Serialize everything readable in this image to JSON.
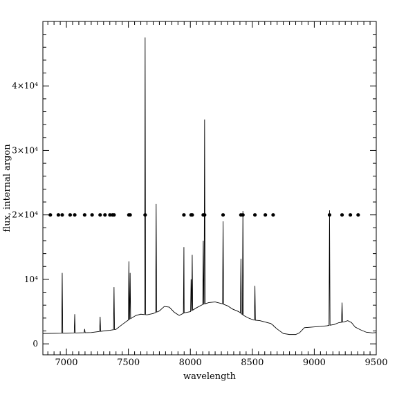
{
  "chart_data": {
    "type": "line",
    "title": "",
    "xlabel": "wavelength",
    "ylabel": "flux, internal argon",
    "xlim": [
      6810,
      9500
    ],
    "ylim": [
      -1700,
      50000
    ],
    "grid": false,
    "legend": "none",
    "x_ticks": [
      {
        "value": 7000,
        "label": "7000"
      },
      {
        "value": 7500,
        "label": "7500"
      },
      {
        "value": 8000,
        "label": "8000"
      },
      {
        "value": 8500,
        "label": "8500"
      },
      {
        "value": 9000,
        "label": "9000"
      },
      {
        "value": 9500,
        "label": "9500"
      }
    ],
    "y_ticks": [
      {
        "value": 0,
        "label": "0"
      },
      {
        "value": 10000,
        "label": "10⁴"
      },
      {
        "value": 20000,
        "label": "2×10⁴"
      },
      {
        "value": 30000,
        "label": "3×10⁴"
      },
      {
        "value": 40000,
        "label": "4×10⁴"
      }
    ],
    "continuum": [
      [
        6810,
        1600
      ],
      [
        7000,
        1650
      ],
      [
        7200,
        1750
      ],
      [
        7300,
        2000
      ],
      [
        7350,
        2100
      ],
      [
        7400,
        2250
      ],
      [
        7450,
        3000
      ],
      [
        7500,
        3700
      ],
      [
        7560,
        4400
      ],
      [
        7600,
        4600
      ],
      [
        7650,
        4500
      ],
      [
        7700,
        4700
      ],
      [
        7750,
        5100
      ],
      [
        7790,
        5800
      ],
      [
        7830,
        5700
      ],
      [
        7870,
        4900
      ],
      [
        7910,
        4400
      ],
      [
        7950,
        4800
      ],
      [
        8000,
        5000
      ],
      [
        8050,
        5600
      ],
      [
        8100,
        6100
      ],
      [
        8150,
        6400
      ],
      [
        8200,
        6500
      ],
      [
        8260,
        6200
      ],
      [
        8300,
        5900
      ],
      [
        8340,
        5400
      ],
      [
        8390,
        5000
      ],
      [
        8430,
        4400
      ],
      [
        8470,
        4000
      ],
      [
        8510,
        3700
      ],
      [
        8560,
        3600
      ],
      [
        8600,
        3400
      ],
      [
        8650,
        3150
      ],
      [
        8700,
        2300
      ],
      [
        8750,
        1600
      ],
      [
        8800,
        1450
      ],
      [
        8850,
        1450
      ],
      [
        8880,
        1700
      ],
      [
        8920,
        2500
      ],
      [
        8980,
        2600
      ],
      [
        9050,
        2700
      ],
      [
        9100,
        2800
      ],
      [
        9160,
        3000
      ],
      [
        9200,
        3300
      ],
      [
        9240,
        3400
      ],
      [
        9270,
        3600
      ],
      [
        9300,
        3300
      ],
      [
        9330,
        2600
      ],
      [
        9370,
        2200
      ],
      [
        9420,
        1800
      ],
      [
        9470,
        1700
      ],
      [
        9500,
        1750
      ]
    ],
    "lines": [
      {
        "x": 6966,
        "y": 11000
      },
      {
        "x": 7067,
        "y": 4600
      },
      {
        "x": 7147,
        "y": 2300
      },
      {
        "x": 7272,
        "y": 4200
      },
      {
        "x": 7384,
        "y": 8800
      },
      {
        "x": 7504,
        "y": 12800
      },
      {
        "x": 7514,
        "y": 11000
      },
      {
        "x": 7635,
        "y": 47500
      },
      {
        "x": 7724,
        "y": 21700
      },
      {
        "x": 7948,
        "y": 15000
      },
      {
        "x": 8006,
        "y": 10000
      },
      {
        "x": 8015,
        "y": 13800
      },
      {
        "x": 8104,
        "y": 16000
      },
      {
        "x": 8115,
        "y": 34800
      },
      {
        "x": 8264,
        "y": 19000
      },
      {
        "x": 8408,
        "y": 13200
      },
      {
        "x": 8424,
        "y": 20600
      },
      {
        "x": 8521,
        "y": 9000
      },
      {
        "x": 8668,
        "y": 2900
      },
      {
        "x": 9123,
        "y": 20700
      },
      {
        "x": 9224,
        "y": 6400
      }
    ],
    "marker_y": 20000,
    "markers_x": [
      6870,
      6935,
      6966,
      7030,
      7067,
      7147,
      7207,
      7272,
      7311,
      7351,
      7372,
      7384,
      7504,
      7514,
      7635,
      7948,
      8006,
      8015,
      8104,
      8115,
      8264,
      8408,
      8424,
      8521,
      8605,
      8668,
      9123,
      9224,
      9291,
      9354
    ]
  }
}
